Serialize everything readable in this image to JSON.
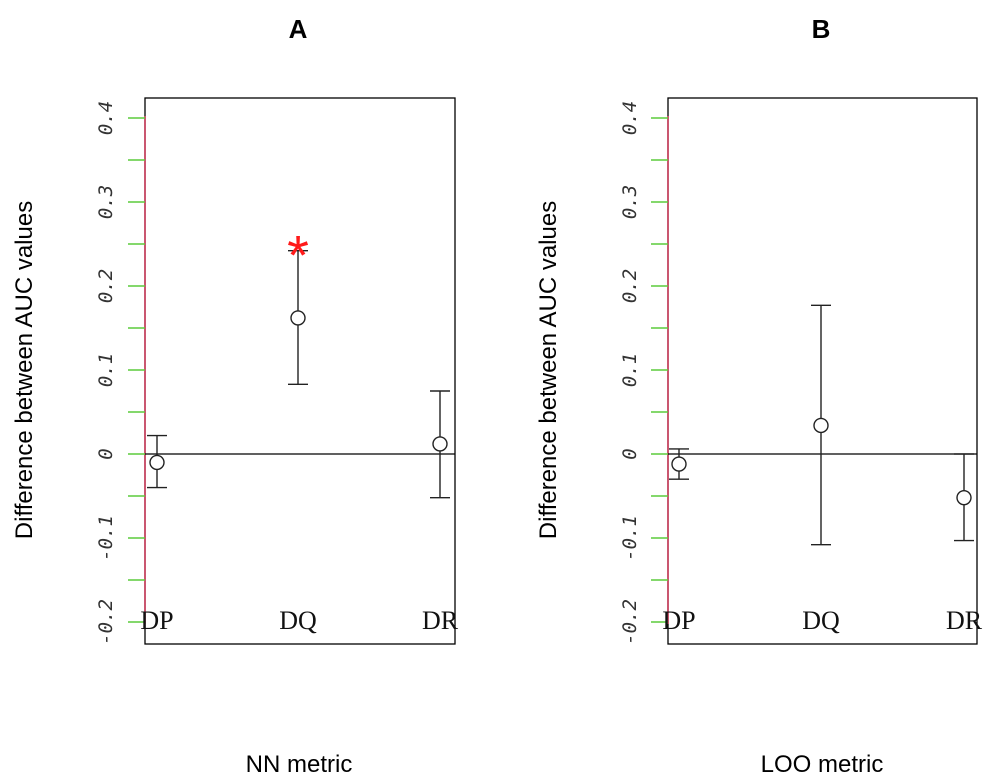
{
  "chart_data": [
    {
      "type": "scatter",
      "title": "A",
      "xlabel": "NN metric",
      "ylabel": "Difference between AUC values",
      "ylim": [
        -0.2,
        0.4
      ],
      "yticks": [
        "-0.2",
        "-0.1",
        "0",
        "0.1",
        "0.2",
        "0.3",
        "0.4"
      ],
      "ytick_values": [
        -0.2,
        -0.1,
        0,
        0.1,
        0.2,
        0.3,
        0.4
      ],
      "categories": [
        "DP",
        "DQ",
        "DR"
      ],
      "values": [
        -0.01,
        0.162,
        0.012
      ],
      "ci_lower": [
        -0.04,
        0.083,
        -0.052
      ],
      "ci_upper": [
        0.022,
        0.242,
        0.075
      ],
      "significance_marker": "*",
      "significant": [
        false,
        true,
        false
      ],
      "reference_line": 0,
      "colors": {
        "marker_star": "#ff1a1a",
        "axis_left": "#d04060",
        "tick_marks": "#5ccc3c"
      }
    },
    {
      "type": "scatter",
      "title": "B",
      "xlabel": "LOO metric",
      "ylabel": "Difference between AUC values",
      "ylim": [
        -0.2,
        0.4
      ],
      "yticks": [
        "-0.2",
        "-0.1",
        "0",
        "0.1",
        "0.2",
        "0.3",
        "0.4"
      ],
      "ytick_values": [
        -0.2,
        -0.1,
        0,
        0.1,
        0.2,
        0.3,
        0.4
      ],
      "categories": [
        "DP",
        "DQ",
        "DR"
      ],
      "values": [
        -0.012,
        0.034,
        -0.052
      ],
      "ci_lower": [
        -0.03,
        -0.108,
        -0.103
      ],
      "ci_upper": [
        0.006,
        0.177,
        0.0
      ],
      "significance_marker": "*",
      "significant": [
        false,
        false,
        false
      ],
      "reference_line": 0,
      "colors": {
        "marker_star": "#ff1a1a",
        "axis_left": "#d04060",
        "tick_marks": "#5ccc3c"
      }
    }
  ]
}
